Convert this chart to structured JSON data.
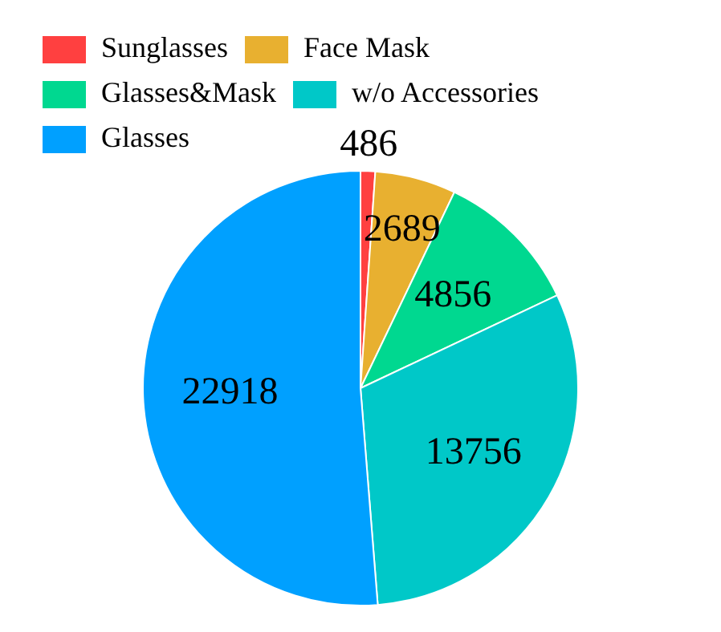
{
  "chart_data": {
    "type": "pie",
    "categories": [
      "Sunglasses",
      "Face Mask",
      "Glasses&Mask",
      "w/o Accessories",
      "Glasses"
    ],
    "values": [
      486,
      2689,
      4856,
      13756,
      22918
    ],
    "colors": [
      "#ff4040",
      "#e8b030",
      "#00d890",
      "#00c8c8",
      "#00a0ff"
    ],
    "data_labels": true,
    "legend": "top left"
  }
}
